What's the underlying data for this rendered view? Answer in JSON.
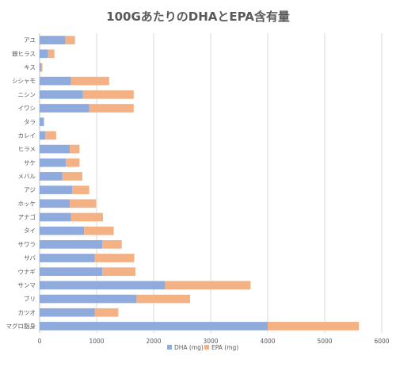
{
  "chart_data": {
    "type": "bar",
    "orientation": "horizontal",
    "stacked": true,
    "title": "100GあたりのDHAとEPA含有量",
    "categories": [
      "アユ",
      "銀ヒラス",
      "キス",
      "シシャモ",
      "ニシン",
      "イワシ",
      "タラ",
      "カレイ",
      "ヒラメ",
      "サケ",
      "メバル",
      "アジ",
      "ホッケ",
      "アナゴ",
      "タイ",
      "サワラ",
      "サバ",
      "ウナギ",
      "サンマ",
      "ブリ",
      "カツオ",
      "マグロ脂身"
    ],
    "series": [
      {
        "name": "DHA (mg)",
        "color": "#8faadc",
        "values": [
          450,
          150,
          30,
          550,
          760,
          870,
          70,
          100,
          530,
          460,
          400,
          570,
          530,
          550,
          780,
          1100,
          970,
          1100,
          2200,
          1700,
          970,
          4000
        ]
      },
      {
        "name": "EPA (mg)",
        "color": "#f4b183",
        "values": [
          170,
          110,
          20,
          670,
          890,
          780,
          10,
          190,
          170,
          240,
          350,
          300,
          460,
          560,
          520,
          340,
          690,
          580,
          1500,
          940,
          410,
          1600
        ]
      }
    ],
    "xlim": [
      0,
      6000
    ],
    "xticks": [
      "0",
      "1000",
      "2000",
      "3000",
      "4000",
      "5000",
      "6000"
    ],
    "grid": "vertical",
    "legend": "bottom"
  }
}
